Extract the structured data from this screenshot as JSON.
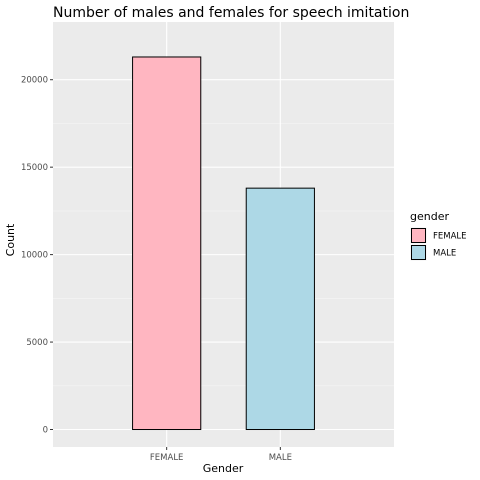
{
  "chart_data": {
    "type": "bar",
    "title": "Number of males and females for speech imitation",
    "xlabel": "Gender",
    "ylabel": "Count",
    "categories": [
      "FEMALE",
      "MALE"
    ],
    "values": [
      21300,
      13800
    ],
    "colors": [
      "#ffb6c1",
      "#add8e6"
    ],
    "ylim": [
      -1000,
      23300
    ],
    "yticks": [
      0,
      5000,
      10000,
      15000,
      20000
    ],
    "ytick_labels": [
      "0",
      "5000",
      "10000",
      "15000",
      "20000"
    ],
    "grid": true,
    "panel_background": "#ebebeb",
    "legend": {
      "title": "gender",
      "position": "right",
      "entries": [
        "FEMALE",
        "MALE"
      ]
    }
  }
}
